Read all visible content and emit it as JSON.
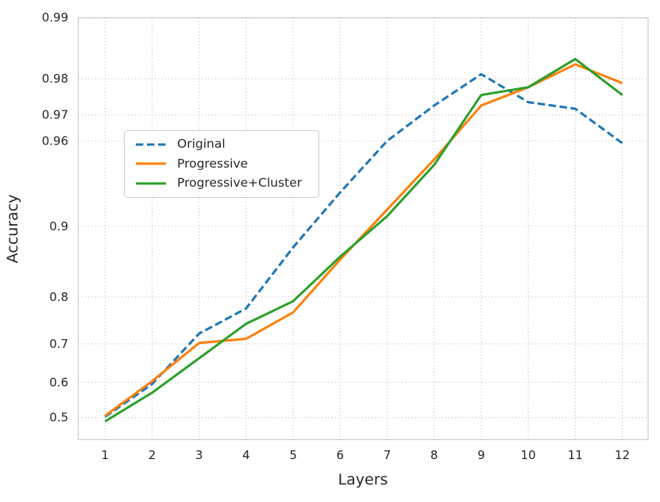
{
  "figure": {
    "background": "#ffffff",
    "text_color": "#262626",
    "grid_color": "#c4c4c4",
    "spine_color": "#cccccc"
  },
  "chart_data": {
    "type": "line",
    "title": "",
    "xlabel": "Layers",
    "ylabel": "Accuracy",
    "x": [
      1,
      2,
      3,
      4,
      5,
      6,
      7,
      8,
      9,
      10,
      11,
      12
    ],
    "xtick_labels": [
      "1",
      "2",
      "3",
      "4",
      "5",
      "6",
      "7",
      "8",
      "9",
      "10",
      "11",
      "12"
    ],
    "yscale": "logit",
    "ytick_values": [
      0.5,
      0.6,
      0.7,
      0.8,
      0.9,
      0.96,
      0.97,
      0.98,
      0.99
    ],
    "ytick_labels": [
      "0.5",
      "0.6",
      "0.7",
      "0.8",
      "0.9",
      "0.96",
      "0.97",
      "0.98",
      "0.99"
    ],
    "ylim": [
      0.436,
      0.99
    ],
    "xlim": [
      0.44,
      12.54
    ],
    "grid": true,
    "grid_style": "dotted",
    "legend_position": "upper-left-inside",
    "series": [
      {
        "name": "Original",
        "color": "#1f77b4",
        "dash": "dashed",
        "values": [
          0.502,
          0.595,
          0.724,
          0.778,
          0.876,
          0.93,
          0.96,
          0.973,
          0.981,
          0.974,
          0.972,
          0.959
        ]
      },
      {
        "name": "Progressive",
        "color": "#ff7f0e",
        "dash": "solid",
        "values": [
          0.505,
          0.603,
          0.702,
          0.712,
          0.77,
          0.86,
          0.916,
          0.951,
          0.973,
          0.978,
          0.983,
          0.979
        ]
      },
      {
        "name": "Progressive+Cluster",
        "color": "#2ca02c",
        "dash": "solid",
        "values": [
          0.489,
          0.571,
          0.664,
          0.746,
          0.792,
          0.864,
          0.91,
          0.948,
          0.976,
          0.978,
          0.984,
          0.976
        ]
      }
    ]
  }
}
